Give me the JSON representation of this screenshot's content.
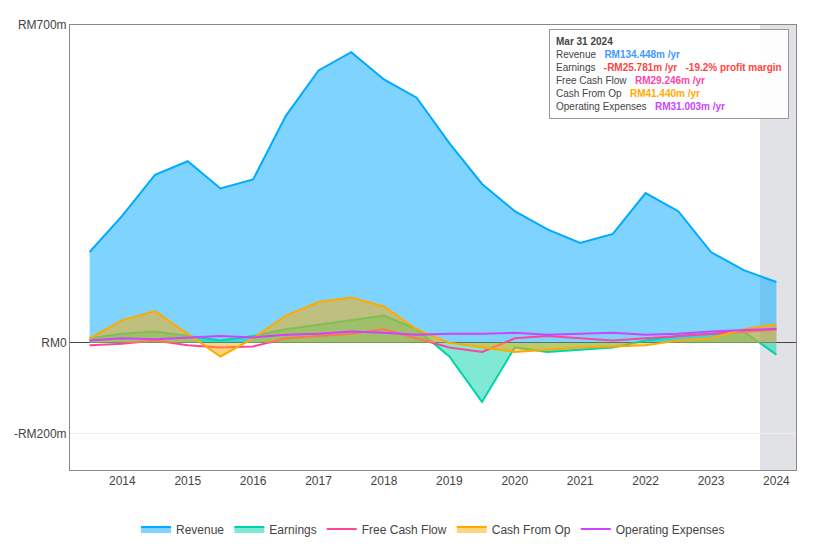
{
  "chart_data": {
    "type": "area",
    "x": [
      2013.5,
      2014,
      2014.5,
      2015,
      2015.5,
      2016,
      2016.5,
      2017,
      2017.5,
      2018,
      2018.5,
      2019,
      2019.5,
      2020,
      2020.5,
      2021,
      2021.5,
      2022,
      2022.5,
      2023,
      2023.5,
      2024
    ],
    "xlim": [
      2013.2,
      2024.3
    ],
    "xticks": [
      2014,
      2015,
      2016,
      2017,
      2018,
      2019,
      2020,
      2021,
      2022,
      2023,
      2024
    ],
    "ylim": [
      -280,
      700
    ],
    "yticks": [
      {
        "value": 700,
        "label": "RM700m"
      },
      {
        "value": 0,
        "label": "RM0"
      },
      {
        "value": -200,
        "label": "-RM200m"
      }
    ],
    "grid": true,
    "legend": "bottom",
    "series": [
      {
        "name": "Revenue",
        "color": "#00aaff",
        "type": "area",
        "values": [
          200,
          280,
          370,
          400,
          340,
          360,
          500,
          600,
          640,
          580,
          540,
          440,
          350,
          290,
          250,
          220,
          240,
          330,
          290,
          200,
          160,
          134
        ]
      },
      {
        "name": "Earnings",
        "color": "#00d4aa",
        "type": "area",
        "values": [
          10,
          20,
          25,
          15,
          5,
          15,
          30,
          40,
          50,
          60,
          30,
          -30,
          -130,
          -10,
          -20,
          -15,
          -10,
          5,
          15,
          20,
          25,
          -26
        ]
      },
      {
        "name": "Free Cash Flow",
        "color": "#ff4499",
        "type": "line",
        "values": [
          -5,
          -2,
          5,
          -5,
          -10,
          -8,
          10,
          15,
          20,
          30,
          10,
          -10,
          -20,
          10,
          15,
          10,
          5,
          10,
          15,
          20,
          25,
          29
        ]
      },
      {
        "name": "Cash From Op",
        "color": "#ffaa00",
        "type": "area",
        "values": [
          10,
          50,
          70,
          20,
          -30,
          10,
          60,
          90,
          100,
          80,
          30,
          0,
          -10,
          -20,
          -15,
          -10,
          -8,
          -5,
          5,
          10,
          30,
          41
        ]
      },
      {
        "name": "Operating Expenses",
        "color": "#cc44ff",
        "type": "line",
        "values": [
          5,
          10,
          8,
          12,
          15,
          12,
          18,
          20,
          25,
          22,
          18,
          20,
          20,
          22,
          18,
          20,
          22,
          18,
          20,
          25,
          28,
          31
        ]
      }
    ],
    "shade_x": [
      2023.75,
      2024.3
    ],
    "annotations": [
      [
        {
          "text": "Mar 31 2024"
        }
      ],
      [
        {
          "text": "Revenue"
        },
        {
          "text": "RM134.448m /yr",
          "color": "#4499ff"
        }
      ],
      [
        {
          "text": "Earnings"
        },
        {
          "text": "-RM25.781m /yr",
          "color": "#ff4444"
        },
        {
          "text": "-19.2% profit margin",
          "color": "#ff4444"
        }
      ],
      [
        {
          "text": "Free Cash Flow"
        },
        {
          "text": "RM29.246m /yr",
          "color": "#ff44aa"
        }
      ],
      [
        {
          "text": "Cash From Op"
        },
        {
          "text": "RM41.440m /yr",
          "color": "#ffaa00"
        }
      ],
      [
        {
          "text": "Operating Expenses"
        },
        {
          "text": "RM31.003m /yr",
          "color": "#cc44ff"
        }
      ]
    ]
  }
}
